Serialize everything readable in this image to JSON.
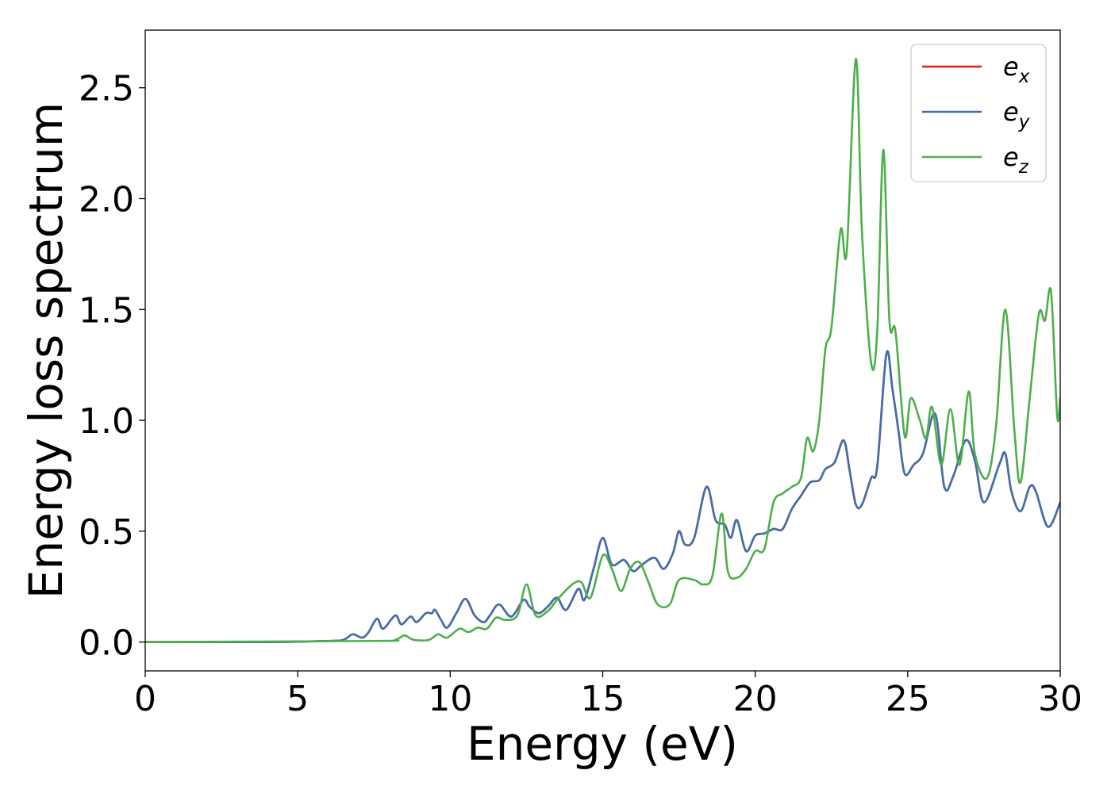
{
  "chart_data": {
    "type": "line",
    "title": "",
    "xlabel": "Energy (eV)",
    "ylabel": "Energy loss spectrum",
    "xlim": [
      0,
      30
    ],
    "ylim": [
      -0.13,
      2.76
    ],
    "xticks": [
      0,
      5,
      10,
      15,
      20,
      25,
      30
    ],
    "xtick_labels": [
      "0",
      "5",
      "10",
      "15",
      "20",
      "25",
      "30"
    ],
    "yticks": [
      0.0,
      0.5,
      1.0,
      1.5,
      2.0,
      2.5
    ],
    "ytick_labels": [
      "0.0",
      "0.5",
      "1.0",
      "1.5",
      "2.0",
      "2.5"
    ],
    "grid": false,
    "legend_position": "top-right",
    "series": [
      {
        "name": "e",
        "subscript": "x",
        "color": "#e41a1c",
        "points": [
          [
            0,
            0
          ],
          [
            4,
            0
          ],
          [
            6,
            0.005
          ],
          [
            6.5,
            0.01
          ],
          [
            6.8,
            0.035
          ],
          [
            7.1,
            0.02
          ],
          [
            7.3,
            0.04
          ],
          [
            7.6,
            0.105
          ],
          [
            7.8,
            0.06
          ],
          [
            8.2,
            0.12
          ],
          [
            8.4,
            0.08
          ],
          [
            8.7,
            0.115
          ],
          [
            8.9,
            0.09
          ],
          [
            9.2,
            0.13
          ],
          [
            9.4,
            0.13
          ],
          [
            9.5,
            0.145
          ],
          [
            9.7,
            0.1
          ],
          [
            9.9,
            0.065
          ],
          [
            10.2,
            0.13
          ],
          [
            10.5,
            0.195
          ],
          [
            10.8,
            0.12
          ],
          [
            11.1,
            0.09
          ],
          [
            11.3,
            0.12
          ],
          [
            11.6,
            0.17
          ],
          [
            12.0,
            0.115
          ],
          [
            12.4,
            0.19
          ],
          [
            12.6,
            0.16
          ],
          [
            12.9,
            0.13
          ],
          [
            13.2,
            0.16
          ],
          [
            13.5,
            0.2
          ],
          [
            13.8,
            0.145
          ],
          [
            14.2,
            0.24
          ],
          [
            14.4,
            0.19
          ],
          [
            14.7,
            0.33
          ],
          [
            15.0,
            0.47
          ],
          [
            15.3,
            0.35
          ],
          [
            15.7,
            0.37
          ],
          [
            16.0,
            0.32
          ],
          [
            16.3,
            0.35
          ],
          [
            16.7,
            0.38
          ],
          [
            17.0,
            0.33
          ],
          [
            17.3,
            0.4
          ],
          [
            17.5,
            0.5
          ],
          [
            17.7,
            0.44
          ],
          [
            18.0,
            0.47
          ],
          [
            18.4,
            0.7
          ],
          [
            18.7,
            0.55
          ],
          [
            19.0,
            0.53
          ],
          [
            19.2,
            0.47
          ],
          [
            19.4,
            0.55
          ],
          [
            19.7,
            0.41
          ],
          [
            20.0,
            0.48
          ],
          [
            20.3,
            0.49
          ],
          [
            20.6,
            0.51
          ],
          [
            20.9,
            0.51
          ],
          [
            21.2,
            0.6
          ],
          [
            21.5,
            0.66
          ],
          [
            21.8,
            0.72
          ],
          [
            22.1,
            0.73
          ],
          [
            22.3,
            0.78
          ],
          [
            22.6,
            0.81
          ],
          [
            22.9,
            0.91
          ],
          [
            23.1,
            0.77
          ],
          [
            23.3,
            0.62
          ],
          [
            23.5,
            0.62
          ],
          [
            23.8,
            0.74
          ],
          [
            24.0,
            0.79
          ],
          [
            24.3,
            1.3
          ],
          [
            24.5,
            1.14
          ],
          [
            24.7,
            0.95
          ],
          [
            24.9,
            0.76
          ],
          [
            25.2,
            0.8
          ],
          [
            25.5,
            0.85
          ],
          [
            25.9,
            1.03
          ],
          [
            26.2,
            0.7
          ],
          [
            26.5,
            0.75
          ],
          [
            26.9,
            0.91
          ],
          [
            27.2,
            0.82
          ],
          [
            27.5,
            0.63
          ],
          [
            28.0,
            0.8
          ],
          [
            28.2,
            0.85
          ],
          [
            28.4,
            0.68
          ],
          [
            28.7,
            0.59
          ],
          [
            29.0,
            0.7
          ],
          [
            29.2,
            0.68
          ],
          [
            29.6,
            0.52
          ],
          [
            30.0,
            0.63
          ]
        ]
      },
      {
        "name": "e",
        "subscript": "y",
        "color": "#3f70ae",
        "points": [
          [
            0,
            0
          ],
          [
            4,
            0
          ],
          [
            6,
            0.005
          ],
          [
            6.5,
            0.01
          ],
          [
            6.8,
            0.035
          ],
          [
            7.1,
            0.02
          ],
          [
            7.3,
            0.04
          ],
          [
            7.6,
            0.105
          ],
          [
            7.8,
            0.06
          ],
          [
            8.2,
            0.12
          ],
          [
            8.4,
            0.08
          ],
          [
            8.7,
            0.115
          ],
          [
            8.9,
            0.09
          ],
          [
            9.2,
            0.13
          ],
          [
            9.4,
            0.13
          ],
          [
            9.5,
            0.145
          ],
          [
            9.7,
            0.1
          ],
          [
            9.9,
            0.065
          ],
          [
            10.2,
            0.13
          ],
          [
            10.5,
            0.195
          ],
          [
            10.8,
            0.12
          ],
          [
            11.1,
            0.09
          ],
          [
            11.3,
            0.12
          ],
          [
            11.6,
            0.17
          ],
          [
            12.0,
            0.115
          ],
          [
            12.4,
            0.19
          ],
          [
            12.6,
            0.16
          ],
          [
            12.9,
            0.13
          ],
          [
            13.2,
            0.16
          ],
          [
            13.5,
            0.2
          ],
          [
            13.8,
            0.145
          ],
          [
            14.2,
            0.24
          ],
          [
            14.4,
            0.19
          ],
          [
            14.7,
            0.33
          ],
          [
            15.0,
            0.47
          ],
          [
            15.3,
            0.35
          ],
          [
            15.7,
            0.37
          ],
          [
            16.0,
            0.32
          ],
          [
            16.3,
            0.35
          ],
          [
            16.7,
            0.38
          ],
          [
            17.0,
            0.33
          ],
          [
            17.3,
            0.4
          ],
          [
            17.5,
            0.5
          ],
          [
            17.7,
            0.44
          ],
          [
            18.0,
            0.47
          ],
          [
            18.4,
            0.7
          ],
          [
            18.7,
            0.55
          ],
          [
            19.0,
            0.53
          ],
          [
            19.2,
            0.47
          ],
          [
            19.4,
            0.55
          ],
          [
            19.7,
            0.41
          ],
          [
            20.0,
            0.48
          ],
          [
            20.3,
            0.49
          ],
          [
            20.6,
            0.51
          ],
          [
            20.9,
            0.51
          ],
          [
            21.2,
            0.6
          ],
          [
            21.5,
            0.66
          ],
          [
            21.8,
            0.72
          ],
          [
            22.1,
            0.73
          ],
          [
            22.3,
            0.78
          ],
          [
            22.6,
            0.81
          ],
          [
            22.9,
            0.91
          ],
          [
            23.1,
            0.77
          ],
          [
            23.3,
            0.62
          ],
          [
            23.5,
            0.62
          ],
          [
            23.8,
            0.74
          ],
          [
            24.0,
            0.79
          ],
          [
            24.3,
            1.3
          ],
          [
            24.5,
            1.14
          ],
          [
            24.7,
            0.95
          ],
          [
            24.9,
            0.76
          ],
          [
            25.2,
            0.8
          ],
          [
            25.5,
            0.85
          ],
          [
            25.9,
            1.03
          ],
          [
            26.2,
            0.7
          ],
          [
            26.5,
            0.75
          ],
          [
            26.9,
            0.91
          ],
          [
            27.2,
            0.82
          ],
          [
            27.5,
            0.63
          ],
          [
            28.0,
            0.8
          ],
          [
            28.2,
            0.85
          ],
          [
            28.4,
            0.68
          ],
          [
            28.7,
            0.59
          ],
          [
            29.0,
            0.7
          ],
          [
            29.2,
            0.68
          ],
          [
            29.6,
            0.52
          ],
          [
            30.0,
            0.63
          ]
        ]
      },
      {
        "name": "e",
        "subscript": "z",
        "color": "#4daf4a",
        "points": [
          [
            0,
            0
          ],
          [
            7.5,
            0.005
          ],
          [
            8.2,
            0.01
          ],
          [
            8.5,
            0.03
          ],
          [
            8.8,
            0.01
          ],
          [
            9.3,
            0.01
          ],
          [
            9.6,
            0.035
          ],
          [
            9.9,
            0.02
          ],
          [
            10.3,
            0.06
          ],
          [
            10.6,
            0.045
          ],
          [
            10.9,
            0.065
          ],
          [
            11.2,
            0.06
          ],
          [
            11.5,
            0.11
          ],
          [
            11.8,
            0.1
          ],
          [
            12.2,
            0.12
          ],
          [
            12.5,
            0.26
          ],
          [
            12.8,
            0.12
          ],
          [
            13.2,
            0.14
          ],
          [
            13.5,
            0.19
          ],
          [
            14.0,
            0.26
          ],
          [
            14.3,
            0.27
          ],
          [
            14.6,
            0.2
          ],
          [
            15.0,
            0.39
          ],
          [
            15.3,
            0.33
          ],
          [
            15.6,
            0.23
          ],
          [
            15.9,
            0.33
          ],
          [
            16.2,
            0.36
          ],
          [
            16.5,
            0.27
          ],
          [
            16.8,
            0.17
          ],
          [
            17.2,
            0.17
          ],
          [
            17.5,
            0.28
          ],
          [
            18.0,
            0.28
          ],
          [
            18.3,
            0.26
          ],
          [
            18.6,
            0.3
          ],
          [
            18.9,
            0.58
          ],
          [
            19.1,
            0.32
          ],
          [
            19.4,
            0.29
          ],
          [
            19.7,
            0.33
          ],
          [
            20.0,
            0.41
          ],
          [
            20.3,
            0.42
          ],
          [
            20.6,
            0.63
          ],
          [
            20.9,
            0.67
          ],
          [
            21.2,
            0.7
          ],
          [
            21.5,
            0.74
          ],
          [
            21.7,
            0.92
          ],
          [
            21.9,
            0.86
          ],
          [
            22.1,
            1.0
          ],
          [
            22.3,
            1.32
          ],
          [
            22.5,
            1.42
          ],
          [
            22.8,
            1.86
          ],
          [
            23.0,
            1.76
          ],
          [
            23.3,
            2.63
          ],
          [
            23.5,
            1.85
          ],
          [
            23.8,
            1.26
          ],
          [
            24.0,
            1.4
          ],
          [
            24.2,
            2.22
          ],
          [
            24.4,
            1.45
          ],
          [
            24.6,
            1.4
          ],
          [
            24.9,
            0.93
          ],
          [
            25.1,
            1.1
          ],
          [
            25.4,
            1.0
          ],
          [
            25.6,
            0.92
          ],
          [
            25.8,
            1.06
          ],
          [
            26.1,
            0.8
          ],
          [
            26.4,
            1.05
          ],
          [
            26.7,
            0.8
          ],
          [
            27.0,
            1.13
          ],
          [
            27.2,
            0.85
          ],
          [
            27.6,
            0.74
          ],
          [
            27.9,
            0.98
          ],
          [
            28.2,
            1.5
          ],
          [
            28.5,
            0.95
          ],
          [
            28.7,
            0.72
          ],
          [
            29.0,
            1.1
          ],
          [
            29.3,
            1.48
          ],
          [
            29.5,
            1.45
          ],
          [
            29.7,
            1.58
          ],
          [
            29.9,
            1.02
          ],
          [
            30.0,
            1.1
          ]
        ]
      }
    ]
  }
}
